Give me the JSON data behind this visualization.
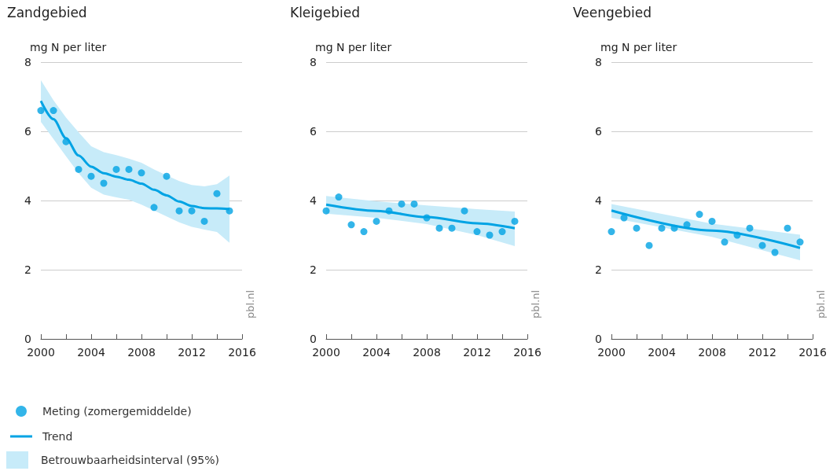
{
  "chart_data": [
    {
      "type": "scatter",
      "title": "Zandgebied",
      "ylabel": "mg N per liter",
      "xlim": [
        2000,
        2016
      ],
      "xticks": [
        2000,
        {
          "value": 2002,
          "label": null
        },
        2004,
        {
          "value": 2006,
          "label": null
        },
        2008,
        {
          "value": 2010,
          "label": null
        },
        2012,
        {
          "value": 2014,
          "label": null
        },
        2016
      ],
      "ylim": [
        0,
        8
      ],
      "yticks": [
        0,
        2,
        4,
        6,
        8
      ],
      "grid": "y",
      "legend": "bottom left",
      "annotations": [
        "pbl.nl",
        "Betrouwbaarheidsinterval (95%)"
      ],
      "x": [
        2000,
        2001,
        2002,
        2003,
        2004,
        2005,
        2006,
        2007,
        2008,
        2009,
        2010,
        2011,
        2012,
        2013,
        2014,
        2015
      ],
      "series": [
        {
          "name": "Meting (zomergemiddelde)",
          "marker": "circle",
          "color": "#00a3e4",
          "values": [
            6.6,
            6.6,
            5.7,
            4.9,
            4.7,
            4.5,
            4.9,
            4.9,
            4.8,
            3.8,
            4.7,
            3.7,
            3.7,
            3.4,
            4.2,
            3.7
          ]
        },
        {
          "name": "Trend",
          "type": "line",
          "marker": "none",
          "color": "#00a3e4",
          "values": [
            6.88,
            6.35,
            5.8,
            5.3,
            4.98,
            4.79,
            4.69,
            4.6,
            4.49,
            4.31,
            4.15,
            3.97,
            3.84,
            3.78,
            3.77,
            3.75
          ],
          "upper": [
            7.48,
            6.9,
            6.4,
            5.97,
            5.57,
            5.4,
            5.31,
            5.21,
            5.09,
            4.9,
            4.73,
            4.56,
            4.45,
            4.41,
            4.47,
            4.72
          ],
          "lower": [
            6.27,
            5.78,
            5.28,
            4.79,
            4.37,
            4.17,
            4.09,
            4.02,
            3.88,
            3.71,
            3.54,
            3.37,
            3.24,
            3.16,
            3.09,
            2.78
          ]
        }
      ]
    },
    {
      "type": "scatter",
      "title": "Kleigebied",
      "ylabel": "mg N per liter",
      "xlim": [
        2000,
        2016
      ],
      "xticks": [
        2000,
        {
          "value": 2002,
          "label": null
        },
        2004,
        {
          "value": 2006,
          "label": null
        },
        2008,
        {
          "value": 2010,
          "label": null
        },
        2012,
        {
          "value": 2014,
          "label": null
        },
        2016
      ],
      "ylim": [
        0,
        8
      ],
      "yticks": [
        0,
        2,
        4,
        6,
        8
      ],
      "grid": "y",
      "annotations": [
        "pbl.nl"
      ],
      "x": [
        2000,
        2001,
        2002,
        2003,
        2004,
        2005,
        2006,
        2007,
        2008,
        2009,
        2010,
        2011,
        2012,
        2013,
        2014,
        2015
      ],
      "series": [
        {
          "marker": "circle",
          "color": "#00a3e4",
          "values": [
            3.7,
            4.1,
            3.3,
            3.1,
            3.4,
            3.7,
            3.9,
            3.9,
            3.5,
            3.2,
            3.2,
            3.7,
            3.1,
            3.0,
            3.1,
            3.4
          ]
        },
        {
          "type": "line",
          "marker": "none",
          "color": "#00a3e4",
          "x": [
            2000,
            2004,
            2008,
            2012,
            2015
          ],
          "values": [
            3.88,
            3.7,
            3.52,
            3.34,
            3.2
          ],
          "upper": [
            4.13,
            3.98,
            3.86,
            3.75,
            3.68
          ],
          "lower": [
            3.62,
            3.5,
            3.32,
            3.0,
            2.68
          ]
        }
      ]
    },
    {
      "type": "scatter",
      "title": "Veengebied",
      "ylabel": "mg N per liter",
      "xlim": [
        2000,
        2016
      ],
      "xticks": [
        2000,
        {
          "value": 2002,
          "label": null
        },
        2004,
        {
          "value": 2006,
          "label": null
        },
        2008,
        {
          "value": 2010,
          "label": null
        },
        2012,
        {
          "value": 2014,
          "label": null
        },
        2016
      ],
      "ylim": [
        0,
        8
      ],
      "yticks": [
        0,
        2,
        4,
        6,
        8
      ],
      "grid": "y",
      "annotations": [
        "pbl.nl"
      ],
      "x": [
        2000,
        2001,
        2002,
        2003,
        2004,
        2005,
        2006,
        2007,
        2008,
        2009,
        2010,
        2011,
        2012,
        2013,
        2014,
        2015
      ],
      "series": [
        {
          "marker": "circle",
          "color": "#00a3e4",
          "values": [
            3.1,
            3.5,
            3.2,
            2.7,
            3.2,
            3.2,
            3.3,
            3.6,
            3.4,
            2.8,
            3.0,
            3.2,
            2.7,
            2.5,
            3.2,
            2.8
          ]
        },
        {
          "type": "line",
          "marker": "none",
          "color": "#00a3e4",
          "x": [
            2000,
            2008,
            2015
          ],
          "values": [
            3.71,
            3.13,
            2.63
          ],
          "upper": [
            3.9,
            3.33,
            3.01
          ],
          "lower": [
            3.5,
            2.95,
            2.27
          ]
        }
      ]
    }
  ]
}
